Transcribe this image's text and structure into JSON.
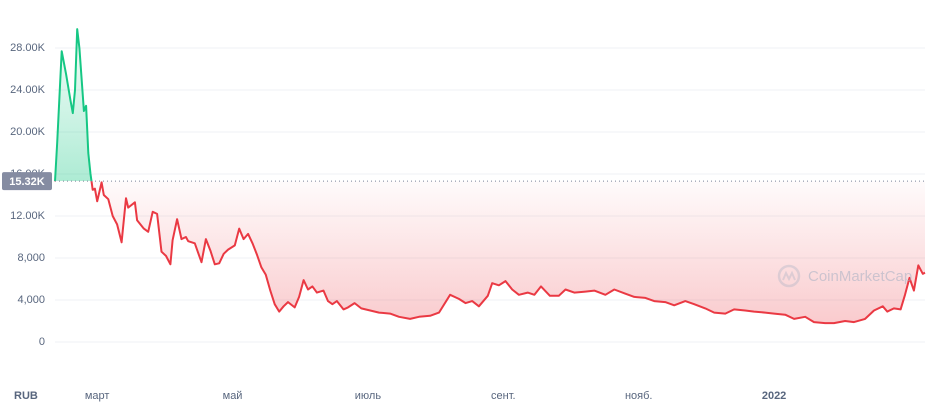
{
  "chart_data": {
    "type": "line",
    "currency": "RUB",
    "watermark": "CoinMarketCap",
    "reference": {
      "value": 15320,
      "label": "15.32K"
    },
    "xlim": [
      0,
      392
    ],
    "xticks": [
      {
        "value": 19,
        "label": "март"
      },
      {
        "value": 80,
        "label": "май"
      },
      {
        "value": 141,
        "label": "июль"
      },
      {
        "value": 202,
        "label": "сент."
      },
      {
        "value": 263,
        "label": "нояб."
      },
      {
        "value": 324,
        "label": "2022"
      }
    ],
    "ylim": [
      -4000,
      32000
    ],
    "yticks": [
      0,
      {
        "value": 4000,
        "label": "4,000"
      },
      {
        "value": 8000,
        "label": "8,000"
      },
      {
        "value": 12000,
        "label": "12.00K"
      },
      {
        "value": 16000,
        "label": "16.00K"
      },
      {
        "value": 20000,
        "label": "20.00K"
      },
      {
        "value": 24000,
        "label": "24.00K"
      },
      {
        "value": 28000,
        "label": "28.00K"
      }
    ],
    "grid": true,
    "colors": {
      "above": "#16c784",
      "below": "#ea3943"
    },
    "series": [
      {
        "x": [
          0,
          1,
          3,
          5,
          7,
          8,
          9,
          10,
          11,
          13,
          14,
          15,
          16,
          17,
          18,
          19,
          21,
          22,
          24,
          26,
          28,
          30,
          32,
          33,
          36,
          37,
          40,
          42,
          44,
          46,
          48,
          50,
          52,
          53,
          55,
          57,
          59,
          60,
          63,
          64,
          66,
          68,
          70,
          72,
          74,
          76,
          78,
          81,
          83,
          85,
          87,
          89,
          91,
          93,
          95,
          97,
          99,
          101,
          103,
          105,
          108,
          110,
          112,
          114,
          116,
          118,
          121,
          123,
          125,
          127,
          130,
          132,
          135,
          138,
          142,
          146,
          151,
          155,
          160,
          164,
          169,
          173,
          178,
          182,
          185,
          188,
          191,
          195,
          197,
          200,
          203,
          206,
          209,
          213,
          216,
          219,
          223,
          227,
          230,
          234,
          239,
          243,
          248,
          252,
          257,
          261,
          266,
          270,
          275,
          279,
          284,
          288,
          293,
          297,
          302,
          306,
          311,
          315,
          320,
          324,
          329,
          333,
          338,
          342,
          347,
          351,
          356,
          360,
          365,
          369,
          373,
          375,
          378,
          381,
          383,
          385,
          387,
          389,
          391,
          392
        ],
        "values": [
          15300,
          19000,
          27700,
          25500,
          23000,
          21800,
          24000,
          29800,
          28000,
          22000,
          22500,
          18000,
          16000,
          14500,
          14600,
          13400,
          15200,
          14000,
          13600,
          12000,
          11200,
          9500,
          13700,
          12800,
          13300,
          11600,
          10800,
          10500,
          12400,
          12200,
          8600,
          8200,
          7400,
          9700,
          11700,
          9800,
          10000,
          9600,
          9400,
          8800,
          7600,
          9800,
          8700,
          7400,
          7500,
          8400,
          8800,
          9200,
          10800,
          9800,
          10300,
          9400,
          8300,
          7100,
          6400,
          4900,
          3600,
          2900,
          3400,
          3800,
          3300,
          4300,
          5900,
          5000,
          5300,
          4700,
          4900,
          3900,
          3600,
          3900,
          3100,
          3300,
          3700,
          3200,
          3000,
          2800,
          2700,
          2400,
          2200,
          2400,
          2500,
          2800,
          4500,
          4100,
          3700,
          3900,
          3400,
          4400,
          5600,
          5400,
          5800,
          5000,
          4500,
          4700,
          4500,
          5300,
          4400,
          4400,
          5000,
          4700,
          4800,
          4900,
          4500,
          5000,
          4600,
          4300,
          4200,
          3900,
          3800,
          3500,
          3900,
          3600,
          3200,
          2800,
          2700,
          3100,
          3000,
          2900,
          2800,
          2700,
          2600,
          2200,
          2400,
          1900,
          1800,
          1800,
          2000,
          1900,
          2200,
          3000,
          3400,
          2900,
          3200,
          3100,
          4500,
          6100,
          4900,
          7300,
          6500,
          6600
        ]
      }
    ]
  }
}
